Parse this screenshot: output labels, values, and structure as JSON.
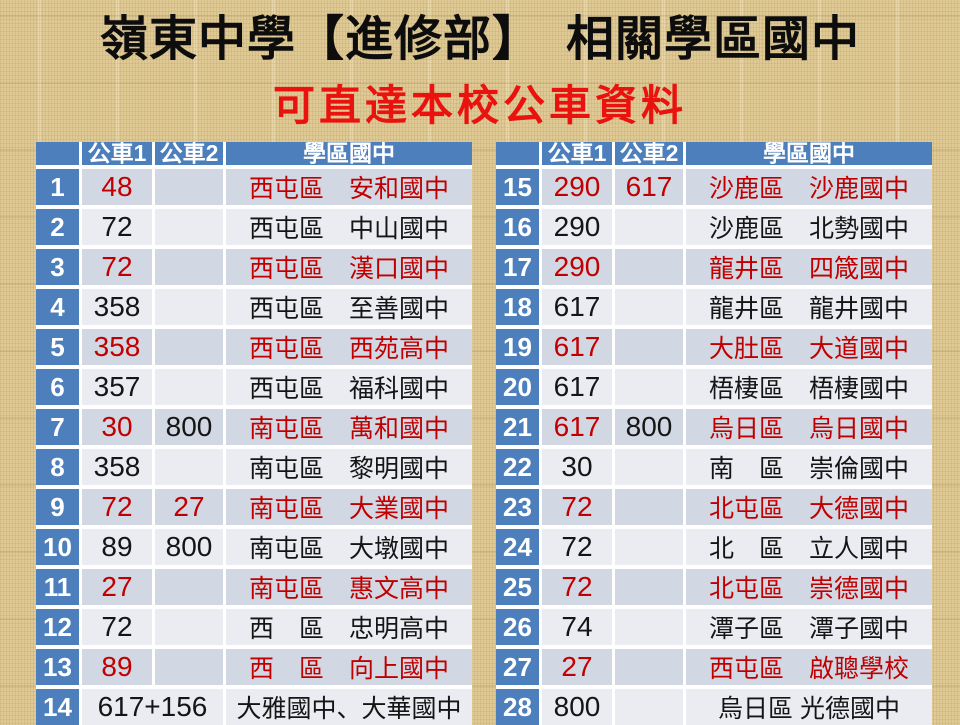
{
  "title": "嶺東中學【進修部】　相關學區國中",
  "subtitle": "可直達本校公車資料",
  "colors": {
    "header_blue": "#4d7fbc",
    "band_dark": "#d2d8e3",
    "band_light": "#eaecf2",
    "highlight_red": "#c00000",
    "subtitle_red": "#ea120e",
    "background_tan": "#dfc994",
    "separator_white": "#ffffff"
  },
  "tables": [
    {
      "headers": [
        "",
        "公車1",
        "公車2",
        "學區國中"
      ],
      "rows": [
        {
          "no": "1",
          "bus1": "48",
          "bus2": "",
          "school": "西屯區　安和國中",
          "hl": true,
          "bus2_hl": false,
          "span": false
        },
        {
          "no": "2",
          "bus1": "72",
          "bus2": "",
          "school": "西屯區　中山國中",
          "hl": false,
          "bus2_hl": false,
          "span": false
        },
        {
          "no": "3",
          "bus1": "72",
          "bus2": "",
          "school": "西屯區　漢口國中",
          "hl": true,
          "bus2_hl": false,
          "span": false
        },
        {
          "no": "4",
          "bus1": "358",
          "bus2": "",
          "school": "西屯區　至善國中",
          "hl": false,
          "bus2_hl": false,
          "span": false
        },
        {
          "no": "5",
          "bus1": "358",
          "bus2": "",
          "school": "西屯區　西苑高中",
          "hl": true,
          "bus2_hl": false,
          "span": false
        },
        {
          "no": "6",
          "bus1": "357",
          "bus2": "",
          "school": "西屯區　福科國中",
          "hl": false,
          "bus2_hl": false,
          "span": false
        },
        {
          "no": "7",
          "bus1": "30",
          "bus2": "800",
          "school": "南屯區　萬和國中",
          "hl": true,
          "bus2_hl": false,
          "span": false
        },
        {
          "no": "8",
          "bus1": "358",
          "bus2": "",
          "school": "南屯區　黎明國中",
          "hl": false,
          "bus2_hl": false,
          "span": false
        },
        {
          "no": "9",
          "bus1": "72",
          "bus2": "27",
          "school": "南屯區　大業國中",
          "hl": true,
          "bus2_hl": true,
          "span": false
        },
        {
          "no": "10",
          "bus1": "89",
          "bus2": "800",
          "school": "南屯區　大墩國中",
          "hl": false,
          "bus2_hl": false,
          "span": false
        },
        {
          "no": "11",
          "bus1": "27",
          "bus2": "",
          "school": "南屯區　惠文高中",
          "hl": true,
          "bus2_hl": false,
          "span": false
        },
        {
          "no": "12",
          "bus1": "72",
          "bus2": "",
          "school": "西　區　忠明高中",
          "hl": false,
          "bus2_hl": false,
          "span": false
        },
        {
          "no": "13",
          "bus1": "89",
          "bus2": "",
          "school": "西　區　向上國中",
          "hl": true,
          "bus2_hl": false,
          "span": false
        },
        {
          "no": "14",
          "bus1": "617+156",
          "bus2": "",
          "school": "大雅國中、大華國中",
          "hl": false,
          "bus2_hl": false,
          "span": true
        }
      ]
    },
    {
      "headers": [
        "",
        "公車1",
        "公車2",
        "學區國中"
      ],
      "rows": [
        {
          "no": "15",
          "bus1": "290",
          "bus2": "617",
          "school": "沙鹿區　沙鹿國中",
          "hl": true,
          "bus2_hl": true,
          "span": false
        },
        {
          "no": "16",
          "bus1": "290",
          "bus2": "",
          "school": "沙鹿區　北勢國中",
          "hl": false,
          "bus2_hl": false,
          "span": false
        },
        {
          "no": "17",
          "bus1": "290",
          "bus2": "",
          "school": "龍井區　四箴國中",
          "hl": true,
          "bus2_hl": false,
          "span": false
        },
        {
          "no": "18",
          "bus1": "617",
          "bus2": "",
          "school": "龍井區　龍井國中",
          "hl": false,
          "bus2_hl": false,
          "span": false
        },
        {
          "no": "19",
          "bus1": "617",
          "bus2": "",
          "school": "大肚區　大道國中",
          "hl": true,
          "bus2_hl": false,
          "span": false
        },
        {
          "no": "20",
          "bus1": "617",
          "bus2": "",
          "school": "梧棲區　梧棲國中",
          "hl": false,
          "bus2_hl": false,
          "span": false
        },
        {
          "no": "21",
          "bus1": "617",
          "bus2": "800",
          "school": "烏日區　烏日國中",
          "hl": true,
          "bus2_hl": false,
          "span": false
        },
        {
          "no": "22",
          "bus1": "30",
          "bus2": "",
          "school": "南　區　崇倫國中",
          "hl": false,
          "bus2_hl": false,
          "span": false
        },
        {
          "no": "23",
          "bus1": "72",
          "bus2": "",
          "school": "北屯區　大德國中",
          "hl": true,
          "bus2_hl": false,
          "span": false
        },
        {
          "no": "24",
          "bus1": "72",
          "bus2": "",
          "school": "北　區　立人國中",
          "hl": false,
          "bus2_hl": false,
          "span": false
        },
        {
          "no": "25",
          "bus1": "72",
          "bus2": "",
          "school": "北屯區　崇德國中",
          "hl": true,
          "bus2_hl": false,
          "span": false
        },
        {
          "no": "26",
          "bus1": "74",
          "bus2": "",
          "school": "潭子區　潭子國中",
          "hl": false,
          "bus2_hl": false,
          "span": false
        },
        {
          "no": "27",
          "bus1": "27",
          "bus2": "",
          "school": "西屯區　啟聰學校",
          "hl": true,
          "bus2_hl": false,
          "span": false
        },
        {
          "no": "28",
          "bus1": "800",
          "bus2": "",
          "school": "烏日區 光德國中",
          "hl": false,
          "bus2_hl": false,
          "span": false
        }
      ]
    }
  ]
}
